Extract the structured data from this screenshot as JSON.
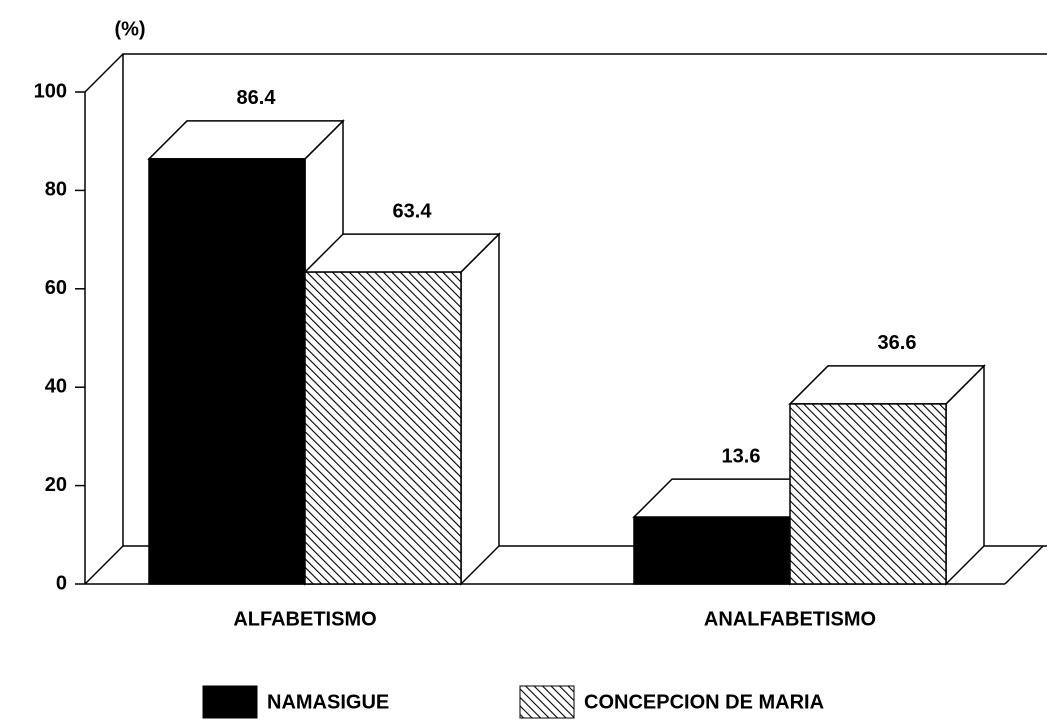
{
  "chart_data": {
    "type": "bar3d",
    "y_label": "(%)",
    "categories": [
      "ALFABETISMO",
      "ANALFABETISMO"
    ],
    "series": [
      {
        "name": "NAMASIGUE",
        "color": "#000000",
        "hatch": false,
        "values": [
          86.4,
          13.6
        ]
      },
      {
        "name": "CONCEPCION DE MARIA",
        "color": "#000000",
        "hatch": true,
        "values": [
          63.4,
          36.6
        ]
      }
    ],
    "ylim": [
      0,
      100
    ],
    "yticks": [
      0,
      20,
      40,
      60,
      80,
      100
    ]
  }
}
